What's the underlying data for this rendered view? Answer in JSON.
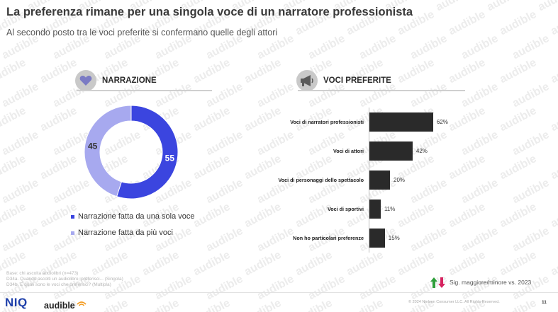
{
  "header": {
    "title": "La preferenza rimane per una singola voce di un narratore professionista",
    "subtitle": "Al secondo posto tra le voci preferite si confermano quelle degli attori"
  },
  "watermark_text": "audible",
  "colors": {
    "donut_main": "#3b45df",
    "donut_second": "#a7a9ef",
    "bar": "#2a2a2a",
    "accent_green": "#2e9e3a",
    "accent_red": "#d6235f",
    "niq_blue": "#1e3faa"
  },
  "narrazione": {
    "heading": "NARRAZIONE",
    "icon": "heart-icon"
  },
  "voci": {
    "heading": "VOCI PREFERITE",
    "icon": "megaphone-icon"
  },
  "chart_data": [
    {
      "type": "pie",
      "variant": "donut",
      "labels": [
        "Narrazione fatta da una sola voce",
        "Narrazione fatta da più voci"
      ],
      "values": [
        55,
        45
      ],
      "value_labels": [
        "55",
        "45"
      ],
      "legend": [
        "Narrazione fatta da una sola voce",
        "Narrazione fatta da più voci"
      ],
      "legend_position": "bottom"
    },
    {
      "type": "bar",
      "orientation": "horizontal",
      "categories": [
        "Voci di narratori professionisti",
        "Voci di attori",
        "Voci di personaggi dello spettacolo",
        "Voci di sportivi",
        "Non ho particolari preferenze"
      ],
      "values": [
        62,
        42,
        20,
        11,
        15
      ],
      "value_labels": [
        "62%",
        "42%",
        "20%",
        "11%",
        "15%"
      ],
      "xlim": [
        0,
        100
      ],
      "grid": false
    }
  ],
  "footer": {
    "notes": [
      "Base: chi ascolta audiolibri (n=473)",
      "D34a. Quando ascolti un audiolibro, preferisci... (Singola)",
      "D34b. E quali sono le voci che preferisci? (Multipla)"
    ],
    "sig_text": "Sig. maggiore/minore vs. 2023",
    "copyright": "© 2024 Nielsen Consumer LLC. All Rights Reserved.",
    "page": "11",
    "logo_niq": "NIQ",
    "logo_audible": "audible"
  }
}
